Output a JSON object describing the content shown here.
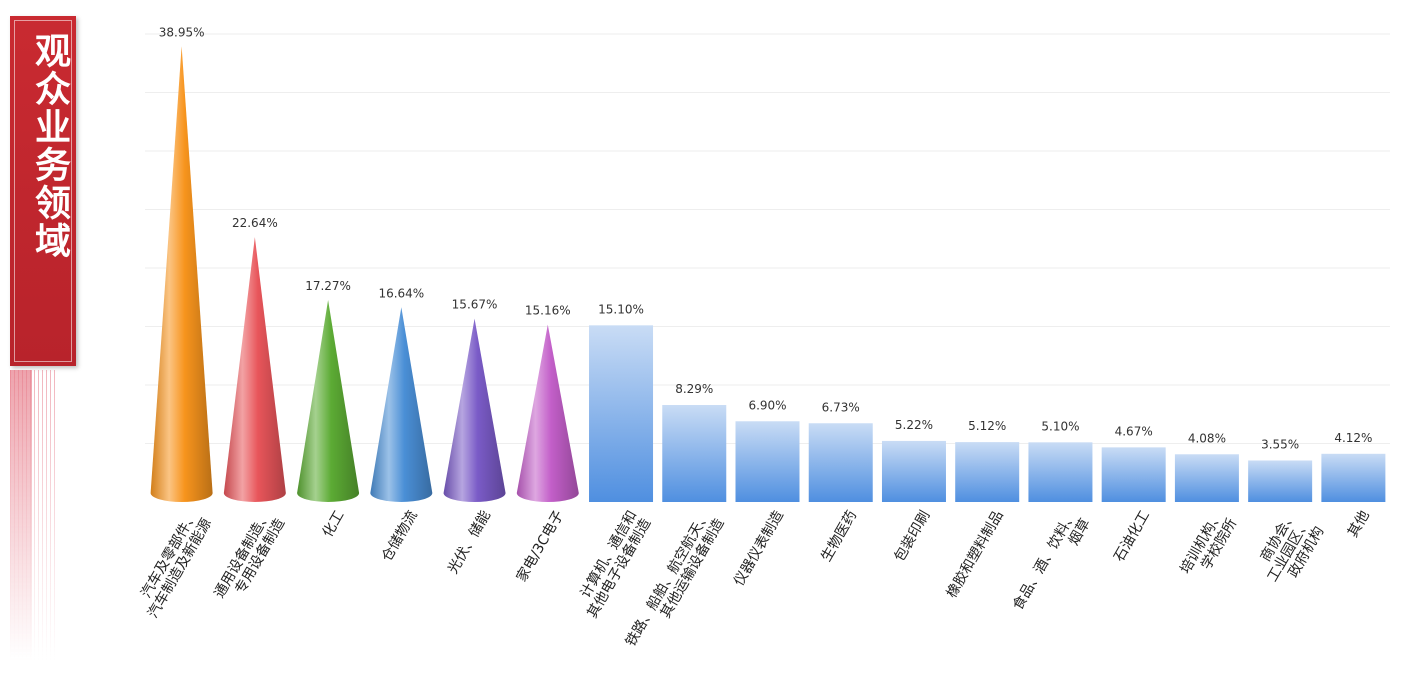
{
  "title": "观众业务领域",
  "chart_data": {
    "type": "bar",
    "title": "观众业务领域",
    "xlabel": "",
    "ylabel": "",
    "ylim": [
      0,
      40
    ],
    "grid": true,
    "categories": [
      [
        "汽车及零部件、",
        "汽车制造及新能源"
      ],
      [
        "通用设备制造、",
        "专用设备制造"
      ],
      [
        "化工"
      ],
      [
        "仓储物流"
      ],
      [
        "光伏、储能"
      ],
      [
        "家电/3C电子"
      ],
      [
        "计算机、通信和",
        "其他电子设备制造"
      ],
      [
        "铁路、船舶、航空航天、",
        "其他运输设备制造"
      ],
      [
        "仪器仪表制造"
      ],
      [
        "生物医药"
      ],
      [
        "包装印刷"
      ],
      [
        "橡胶和塑料制品"
      ],
      [
        "食品、酒、饮料、",
        "烟草"
      ],
      [
        "石油化工"
      ],
      [
        "培训机构、",
        "学校院所"
      ],
      [
        "商协会、",
        "工业园区、",
        "政府机构"
      ],
      [
        "其他"
      ]
    ],
    "values": [
      38.95,
      22.64,
      17.27,
      16.64,
      15.67,
      15.16,
      15.1,
      8.29,
      6.9,
      6.73,
      5.22,
      5.12,
      5.1,
      4.67,
      4.08,
      3.55,
      4.12
    ],
    "value_labels": [
      "38.95%",
      "22.64%",
      "17.27%",
      "16.64%",
      "15.67%",
      "15.16%",
      "15.10%",
      "8.29%",
      "6.90%",
      "6.73%",
      "5.22%",
      "5.12%",
      "5.10%",
      "4.67%",
      "4.08%",
      "3.55%",
      "4.12%"
    ],
    "cone_colors": [
      "#f7941d",
      "#e8555a",
      "#5cab34",
      "#4a8fd6",
      "#7a5bc7",
      "#c35fc9"
    ],
    "bar_color_top": "#c9dcf5",
    "bar_color_bottom": "#4f8fe0",
    "grid_color": "#eeeeee"
  }
}
